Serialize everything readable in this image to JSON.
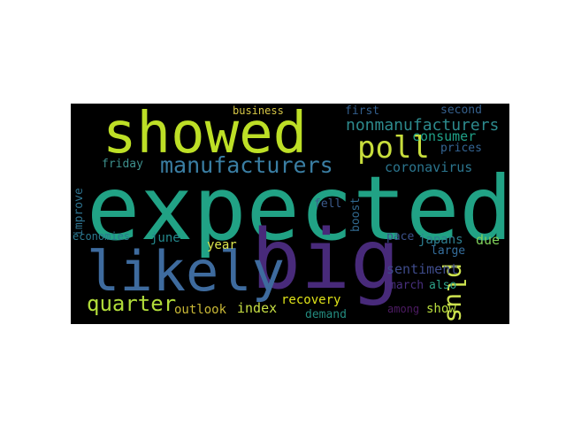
{
  "words": [
    {
      "key": "expected",
      "text": "expected",
      "color": "#21a285"
    },
    {
      "key": "showed",
      "text": "showed",
      "color": "#bddf26"
    },
    {
      "key": "big",
      "text": "big",
      "color": "#482a7a"
    },
    {
      "key": "likely",
      "text": "likely",
      "color": "#3e6b9e"
    },
    {
      "key": "manufacturers",
      "text": "manufacturers",
      "color": "#3a7ea3"
    },
    {
      "key": "poll",
      "text": "poll",
      "color": "#c8de3c"
    },
    {
      "key": "quarter",
      "text": "quarter",
      "color": "#b1dc3a"
    },
    {
      "key": "nonmanufacturers",
      "text": "nonmanufacturers",
      "color": "#2d8a8d"
    },
    {
      "key": "plus",
      "text": "plus",
      "color": "#cde24f"
    },
    {
      "key": "consumer",
      "text": "consumer",
      "color": "#1fa188"
    },
    {
      "key": "coronavirus",
      "text": "coronavirus",
      "color": "#2b758e"
    },
    {
      "key": "business",
      "text": "business",
      "color": "#d6c646"
    },
    {
      "key": "first",
      "text": "first",
      "color": "#335f8d"
    },
    {
      "key": "second",
      "text": "second",
      "color": "#35608d"
    },
    {
      "key": "prices",
      "text": "prices",
      "color": "#346594"
    },
    {
      "key": "improve",
      "text": "improve",
      "color": "#2d728e"
    },
    {
      "key": "friday",
      "text": "friday",
      "color": "#3d8f8c"
    },
    {
      "key": "fell",
      "text": "fell",
      "color": "#3c5b8c"
    },
    {
      "key": "boost",
      "text": "boost",
      "color": "#31688e"
    },
    {
      "key": "economies",
      "text": "economies",
      "color": "#2a788e"
    },
    {
      "key": "june",
      "text": "june",
      "color": "#24898d"
    },
    {
      "key": "year",
      "text": "year",
      "color": "#dbe54c"
    },
    {
      "key": "pace",
      "text": "pace",
      "color": "#3b528b"
    },
    {
      "key": "japans",
      "text": "japans",
      "color": "#2e7f91"
    },
    {
      "key": "due",
      "text": "due",
      "color": "#7fcf5a"
    },
    {
      "key": "large",
      "text": "large",
      "color": "#356e9d"
    },
    {
      "key": "sentiment",
      "text": "sentiment",
      "color": "#3e4b8a"
    },
    {
      "key": "march",
      "text": "march",
      "color": "#472f7d"
    },
    {
      "key": "also",
      "text": "also",
      "color": "#2da389"
    },
    {
      "key": "recovery",
      "text": "recovery",
      "color": "#dfe318"
    },
    {
      "key": "outlook",
      "text": "outlook",
      "color": "#c9b836"
    },
    {
      "key": "index",
      "text": "index",
      "color": "#c7df44"
    },
    {
      "key": "demand",
      "text": "demand",
      "color": "#238a7e"
    },
    {
      "key": "among",
      "text": "among",
      "color": "#4d1b63"
    },
    {
      "key": "show",
      "text": "show",
      "color": "#b9de3e"
    }
  ]
}
